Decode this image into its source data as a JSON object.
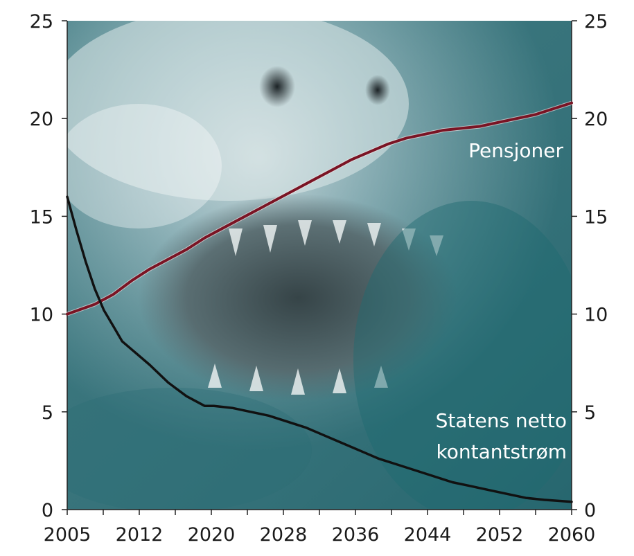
{
  "chart_data": {
    "type": "line",
    "title": "",
    "xlabel": "",
    "ylabel": "",
    "xlim": [
      2005,
      2060
    ],
    "ylim": [
      0,
      25
    ],
    "x_ticks": [
      "2005",
      "2012",
      "2020",
      "2028",
      "2036",
      "2044",
      "2052",
      "2060"
    ],
    "y_ticks": [
      "0",
      "5",
      "10",
      "15",
      "20",
      "25"
    ],
    "y_axis_sides": [
      "left",
      "right"
    ],
    "grid": false,
    "legend": "none",
    "background": "photo of a shark with open jaws",
    "series": [
      {
        "name": "Pensjoner",
        "color": "#7a1424",
        "x": [
          2005,
          2008,
          2010,
          2012,
          2014,
          2016,
          2018,
          2020,
          2022,
          2024,
          2026,
          2028,
          2030,
          2032,
          2034,
          2036,
          2038,
          2040,
          2042,
          2044,
          2046,
          2048,
          2050,
          2052,
          2054,
          2056,
          2058,
          2060
        ],
        "values": [
          10.0,
          10.5,
          11.0,
          11.7,
          12.3,
          12.8,
          13.3,
          13.9,
          14.4,
          14.9,
          15.4,
          15.9,
          16.4,
          16.9,
          17.4,
          17.9,
          18.3,
          18.7,
          19.0,
          19.2,
          19.4,
          19.5,
          19.6,
          19.8,
          20.0,
          20.2,
          20.5,
          20.8
        ]
      },
      {
        "name": "Statens netto\nkontantstrøm",
        "label_lines": [
          "Statens netto",
          "kontantstrøm"
        ],
        "color": "#111111",
        "x": [
          2005,
          2006,
          2007,
          2008,
          2009,
          2010,
          2011,
          2012,
          2014,
          2016,
          2018,
          2020,
          2021,
          2023,
          2025,
          2027,
          2029,
          2031,
          2033,
          2035,
          2037,
          2039,
          2041,
          2043,
          2045,
          2047,
          2049,
          2051,
          2053,
          2055,
          2057,
          2060
        ],
        "values": [
          16.0,
          14.3,
          12.7,
          11.3,
          10.2,
          9.4,
          8.6,
          8.2,
          7.4,
          6.5,
          5.8,
          5.3,
          5.3,
          5.2,
          5.0,
          4.8,
          4.5,
          4.2,
          3.8,
          3.4,
          3.0,
          2.6,
          2.3,
          2.0,
          1.7,
          1.4,
          1.2,
          1.0,
          0.8,
          0.6,
          0.5,
          0.4
        ]
      }
    ]
  }
}
